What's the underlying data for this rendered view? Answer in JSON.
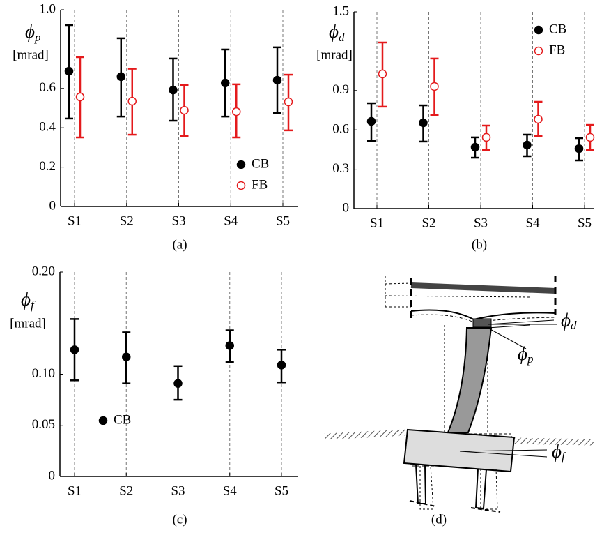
{
  "chart_data": [
    {
      "type": "errorbar",
      "caption": "(a)",
      "ylabel_symbol": "ϕ",
      "ylabel_subscript": "p",
      "ylabel_unit": "[mrad]",
      "categories": [
        "S1",
        "S2",
        "S3",
        "S4",
        "S5"
      ],
      "series": [
        {
          "name": "CB",
          "color": "#000000",
          "marker": "filled",
          "values": [
            0.688,
            0.66,
            0.592,
            0.628,
            0.642
          ],
          "lower": [
            0.447,
            0.457,
            0.436,
            0.457,
            0.475
          ],
          "upper": [
            0.922,
            0.855,
            0.752,
            0.798,
            0.809
          ]
        },
        {
          "name": "FB",
          "color": "#e41a1c",
          "marker": "open",
          "values": [
            0.557,
            0.535,
            0.489,
            0.482,
            0.532
          ],
          "lower": [
            0.351,
            0.365,
            0.358,
            0.351,
            0.387
          ],
          "upper": [
            0.759,
            0.7,
            0.617,
            0.621,
            0.67
          ]
        }
      ],
      "ylim": [
        0,
        1
      ],
      "yticks": [
        0,
        0.2,
        0.4,
        0.6,
        {
          "value": 1,
          "label": "1.0"
        }
      ],
      "xgrid": true,
      "legend": "lower right"
    },
    {
      "type": "errorbar",
      "caption": "(b)",
      "ylabel_symbol": "ϕ",
      "ylabel_subscript": "d",
      "ylabel_unit": "[mrad]",
      "categories": [
        "S1",
        "S2",
        "S3",
        "S4",
        "S5"
      ],
      "series": [
        {
          "name": "CB",
          "color": "#000000",
          "marker": "filled",
          "values": [
            0.665,
            0.654,
            0.468,
            0.484,
            0.457
          ],
          "lower": [
            0.516,
            0.511,
            0.388,
            0.399,
            0.367
          ],
          "upper": [
            0.803,
            0.787,
            0.543,
            0.564,
            0.537
          ]
        },
        {
          "name": "FB",
          "color": "#e41a1c",
          "marker": "open",
          "values": [
            1.027,
            0.931,
            0.543,
            0.681,
            0.543
          ],
          "lower": [
            0.777,
            0.713,
            0.447,
            0.553,
            0.447
          ],
          "upper": [
            1.266,
            1.144,
            0.633,
            0.814,
            0.638
          ]
        }
      ],
      "ylim": [
        0,
        1.5
      ],
      "yticks": [
        0,
        0.3,
        0.6,
        0.9,
        1.5
      ],
      "xgrid": true,
      "legend": "upper right"
    },
    {
      "type": "errorbar",
      "caption": "(c)",
      "ylabel_symbol": "ϕ",
      "ylabel_subscript": "f",
      "ylabel_unit": "[mrad]",
      "categories": [
        "S1",
        "S2",
        "S3",
        "S4",
        "S5"
      ],
      "series": [
        {
          "name": "CB",
          "color": "#000000",
          "marker": "filled",
          "values": [
            0.124,
            0.117,
            0.091,
            0.128,
            0.109
          ],
          "lower": [
            0.094,
            0.091,
            0.075,
            0.112,
            0.092
          ],
          "upper": [
            0.154,
            0.141,
            0.108,
            0.143,
            0.124
          ]
        }
      ],
      "ylim": [
        0,
        0.2
      ],
      "yticks": [
        0,
        0.05,
        {
          "value": 0.1,
          "label": "0.10"
        },
        {
          "value": 0.2,
          "label": "0.20"
        }
      ],
      "xgrid": true,
      "legend": "lower left"
    }
  ],
  "diagram": {
    "caption": "(d)",
    "labels": [
      {
        "symbol": "ϕ",
        "subscript": "d"
      },
      {
        "symbol": "ϕ",
        "subscript": "p"
      },
      {
        "symbol": "ϕ",
        "subscript": "f"
      }
    ]
  }
}
